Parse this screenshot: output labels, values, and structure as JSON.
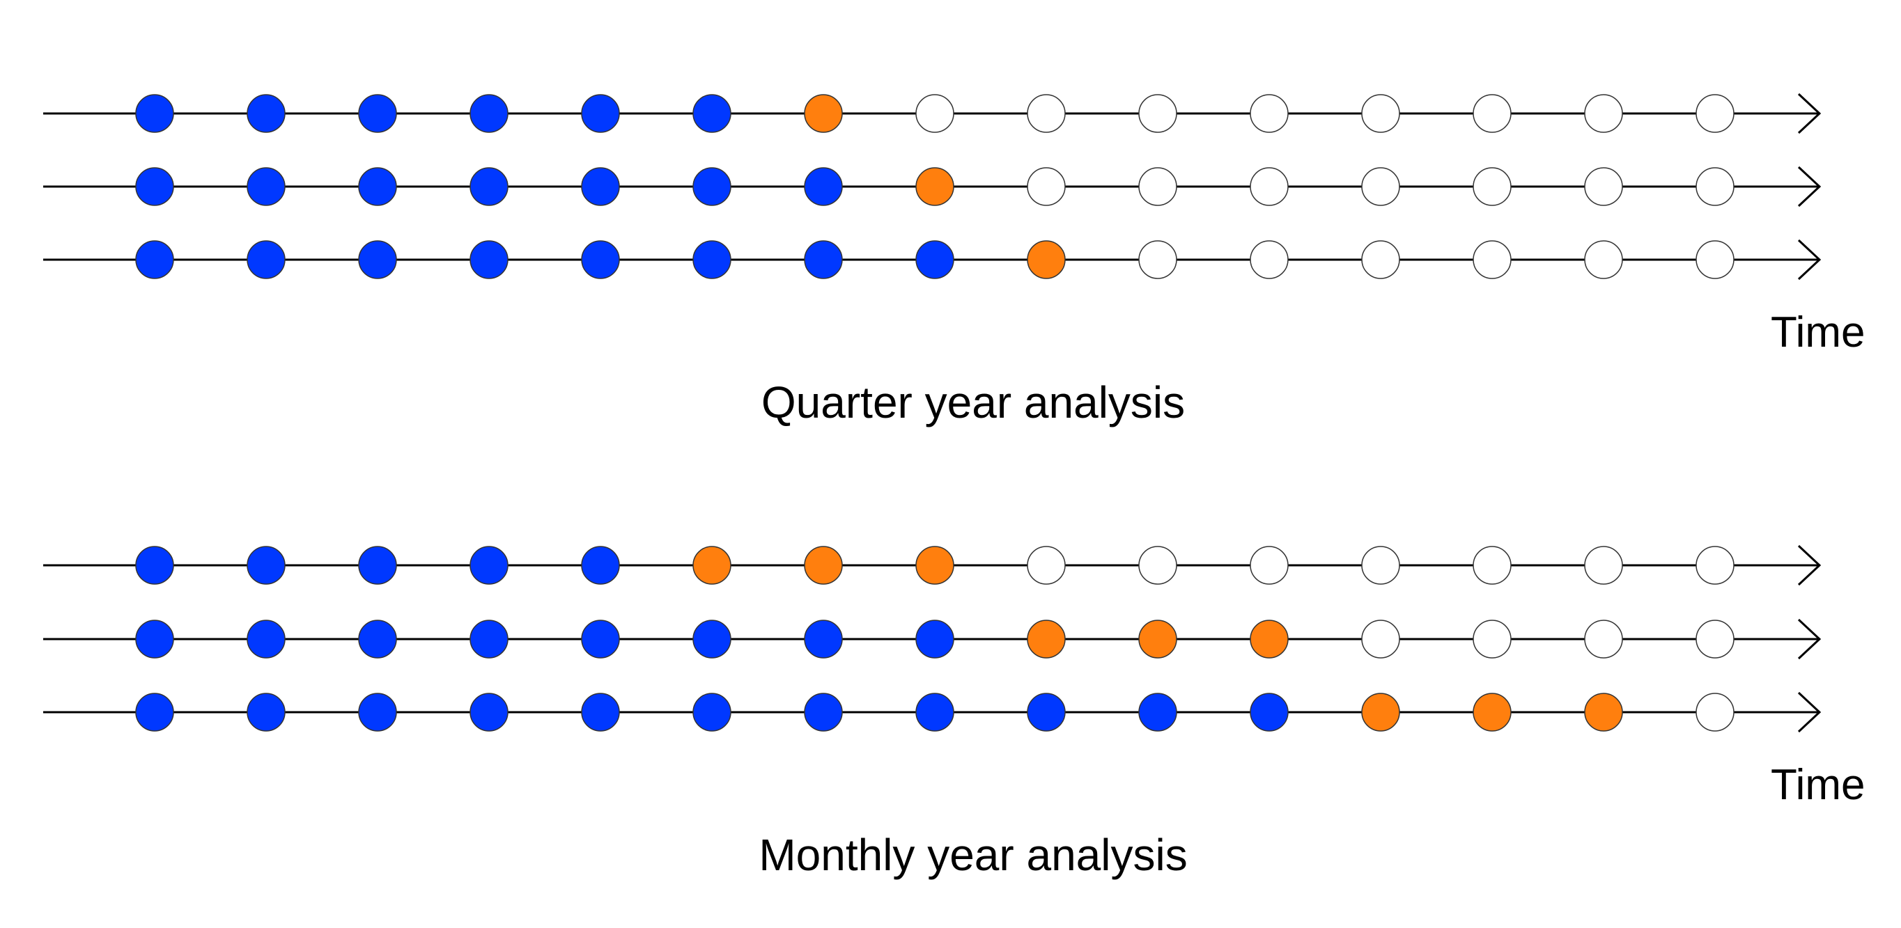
{
  "colors": {
    "blue": "#0038ff",
    "orange": "#ff7f0e",
    "white": "#ffffff",
    "line": "#000000"
  },
  "panels": [
    {
      "title": "Quarter year analysis",
      "axis_label": "Time",
      "timelines": [
        [
          "blue",
          "blue",
          "blue",
          "blue",
          "blue",
          "blue",
          "orange",
          "white",
          "white",
          "white",
          "white",
          "white",
          "white",
          "white",
          "white"
        ],
        [
          "blue",
          "blue",
          "blue",
          "blue",
          "blue",
          "blue",
          "blue",
          "orange",
          "white",
          "white",
          "white",
          "white",
          "white",
          "white",
          "white"
        ],
        [
          "blue",
          "blue",
          "blue",
          "blue",
          "blue",
          "blue",
          "blue",
          "blue",
          "orange",
          "white",
          "white",
          "white",
          "white",
          "white",
          "white"
        ]
      ]
    },
    {
      "title": "Monthly year analysis",
      "axis_label": "Time",
      "timelines": [
        [
          "blue",
          "blue",
          "blue",
          "blue",
          "blue",
          "orange",
          "orange",
          "orange",
          "white",
          "white",
          "white",
          "white",
          "white",
          "white",
          "white"
        ],
        [
          "blue",
          "blue",
          "blue",
          "blue",
          "blue",
          "blue",
          "blue",
          "blue",
          "orange",
          "orange",
          "orange",
          "white",
          "white",
          "white",
          "white"
        ],
        [
          "blue",
          "blue",
          "blue",
          "blue",
          "blue",
          "blue",
          "blue",
          "blue",
          "blue",
          "blue",
          "blue",
          "orange",
          "orange",
          "orange",
          "white"
        ]
      ]
    }
  ]
}
